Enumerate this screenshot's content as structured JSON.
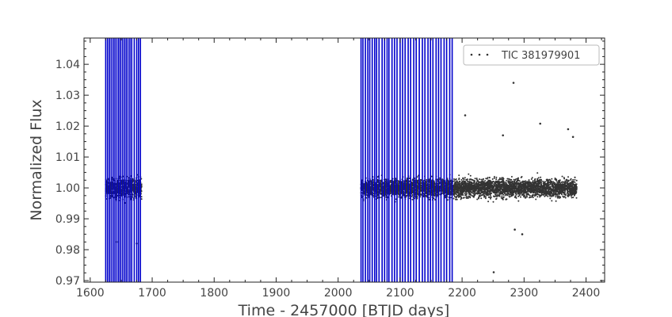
{
  "chart_data": {
    "type": "scatter",
    "title": "",
    "xlabel": "Time - 2457000 [BTJD days]",
    "ylabel": "Normalized Flux",
    "xlim": [
      1590,
      2430
    ],
    "ylim": [
      0.9695,
      1.0485
    ],
    "xticks": [
      1600,
      1700,
      1800,
      1900,
      2000,
      2100,
      2200,
      2300,
      2400
    ],
    "yticks": [
      0.97,
      0.98,
      0.99,
      1.0,
      1.01,
      1.02,
      1.03,
      1.04
    ],
    "ytick_labels": [
      "0.97",
      "0.98",
      "0.99",
      "1.00",
      "1.01",
      "1.02",
      "1.03",
      "1.04"
    ],
    "grid": false,
    "legend_position": "upper right",
    "series": [
      {
        "name": "TIC 381979901",
        "color": "#333333",
        "marker": "dot",
        "segments": [
          {
            "x_start": 1625,
            "x_end": 1683,
            "center": 1.0,
            "scatter": 0.0045
          },
          {
            "x_start": 2037,
            "x_end": 2385,
            "center": 1.0,
            "scatter": 0.004
          }
        ],
        "outliers": [
          {
            "x": 2283,
            "y": 1.034
          },
          {
            "x": 2205,
            "y": 1.0235
          },
          {
            "x": 2326,
            "y": 1.0208
          },
          {
            "x": 2371,
            "y": 1.019
          },
          {
            "x": 2266,
            "y": 1.017
          },
          {
            "x": 2379,
            "y": 1.0165
          },
          {
            "x": 2251,
            "y": 0.9727
          },
          {
            "x": 1643,
            "y": 0.9825
          },
          {
            "x": 1675,
            "y": 0.982
          },
          {
            "x": 2285,
            "y": 0.9865
          },
          {
            "x": 2297,
            "y": 0.985
          }
        ]
      }
    ],
    "vertical_lines": {
      "color": "#0000cc",
      "x": [
        1625,
        1628,
        1631,
        1634,
        1637,
        1640,
        1643,
        1646,
        1649,
        1652,
        1655,
        1658,
        1661,
        1664,
        1667,
        1671,
        1675,
        1678,
        1681,
        2037,
        2040,
        2044,
        2048,
        2051,
        2055,
        2059,
        2062,
        2066,
        2071,
        2075,
        2079,
        2082,
        2087,
        2091,
        2095,
        2100,
        2104,
        2108,
        2113,
        2117,
        2122,
        2126,
        2131,
        2136,
        2140,
        2145,
        2149,
        2153,
        2158,
        2162,
        2166,
        2171,
        2175,
        2180,
        2184
      ]
    }
  }
}
